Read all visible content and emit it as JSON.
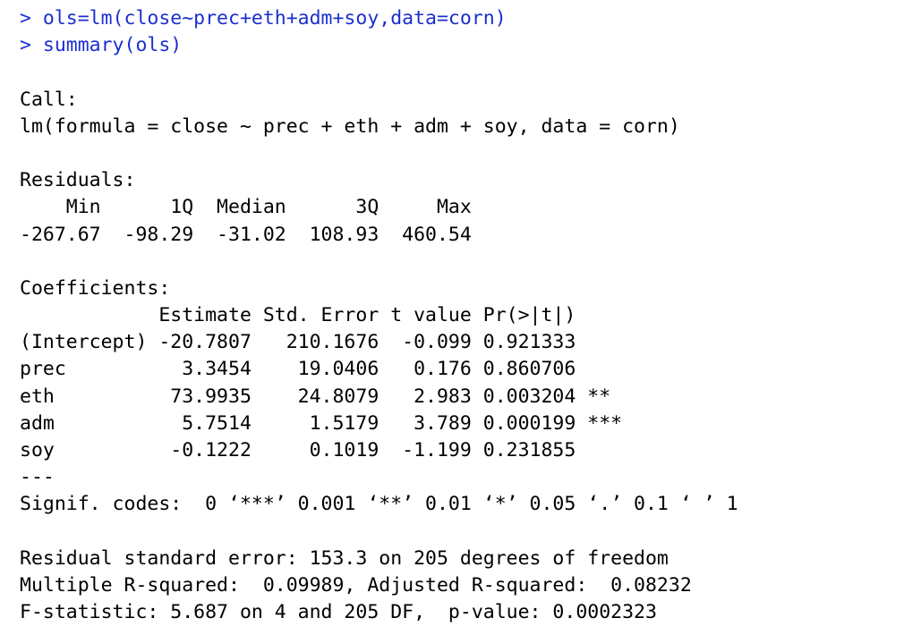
{
  "console": {
    "commands": [
      {
        "prompt": "> ",
        "text": "ols=lm(close~prec+eth+adm+soy,data=corn)"
      },
      {
        "prompt": "> ",
        "text": "summary(ols)"
      }
    ],
    "output": {
      "call_header": "Call:",
      "call_formula": "lm(formula = close ~ prec + eth + adm + soy, data = corn)",
      "residuals_header": "Residuals:",
      "residuals_labels": "    Min      1Q  Median      3Q     Max ",
      "residuals_values": "-267.67  -98.29  -31.02  108.93  460.54 ",
      "coef_header": "Coefficients:",
      "coef_columns": "            Estimate Std. Error t value Pr(>|t|)    ",
      "coef_rows": [
        "(Intercept) -20.7807   210.1676  -0.099 0.921333    ",
        "prec          3.3454    19.0406   0.176 0.860706    ",
        "eth          73.9935    24.8079   2.983 0.003204 ** ",
        "adm           5.7514     1.5179   3.789 0.000199 ***",
        "soy          -0.1222     0.1019  -1.199 0.231855    "
      ],
      "separator": "---",
      "signif_codes": "Signif. codes:  0 ‘***’ 0.001 ‘**’ 0.01 ‘*’ 0.05 ‘.’ 0.1 ‘ ’ 1",
      "rse": "Residual standard error: 153.3 on 205 degrees of freedom",
      "r_squared": "Multiple R-squared:  0.09989, Adjusted R-squared:  0.08232 ",
      "f_statistic": "F-statistic: 5.687 on 4 and 205 DF,  p-value: 0.0002323"
    }
  }
}
